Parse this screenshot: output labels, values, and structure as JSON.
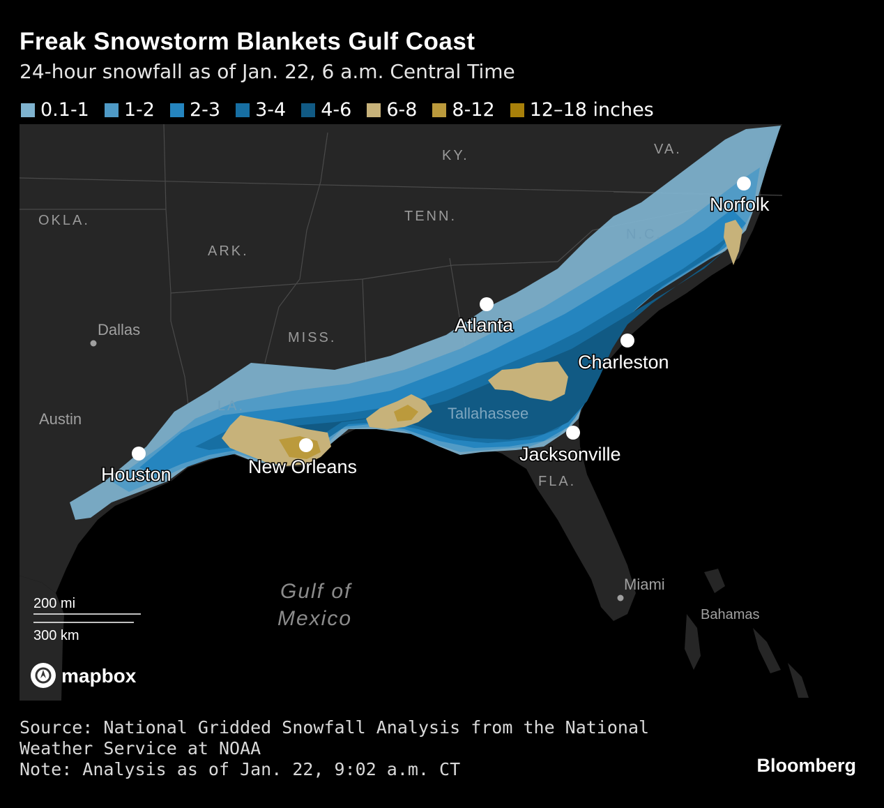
{
  "title": "Freak Snowstorm Blankets Gulf Coast",
  "subtitle": "24-hour snowfall as of Jan. 22, 6 a.m. Central Time",
  "legend": [
    {
      "label": "0.1-1",
      "color": "#7fb3cf"
    },
    {
      "label": "1-2",
      "color": "#4f9ac6"
    },
    {
      "label": "2-3",
      "color": "#2585bf"
    },
    {
      "label": "3-4",
      "color": "#176fa3"
    },
    {
      "label": "4-6",
      "color": "#115a84"
    },
    {
      "label": "6-8",
      "color": "#c7b27a"
    },
    {
      "label": "8-12",
      "color": "#bb9a3c"
    },
    {
      "label": "12–18 inches",
      "color": "#a8800a"
    }
  ],
  "states": {
    "ky": "KY.",
    "va": "VA.",
    "tenn": "TENN.",
    "okla": "OKLA.",
    "ark": "ARK.",
    "miss": "MISS.",
    "nc": "N.C.",
    "la": "LA.",
    "fla": "FLA."
  },
  "cities_major": {
    "norfolk": "Norfolk",
    "atlanta": "Atlanta",
    "charleston": "Charleston",
    "jacksonville": "Jacksonville",
    "houston": "Houston",
    "new_orleans": "New Orleans"
  },
  "cities_minor": {
    "dallas": "Dallas",
    "austin": "Austin",
    "tallahassee": "Tallahassee",
    "miami": "Miami",
    "bahamas": "Bahamas"
  },
  "water": {
    "gulf_line1": "Gulf of",
    "gulf_line2": "Mexico"
  },
  "scale": {
    "miles": "200 mi",
    "km": "300 km"
  },
  "attribution": "mapbox",
  "footer": {
    "source": "Source: National Gridded Snowfall Analysis from the National Weather Service at NOAA",
    "note": "Note: Analysis as of Jan. 22, 9:02 a.m. CT"
  },
  "brand": "Bloomberg"
}
